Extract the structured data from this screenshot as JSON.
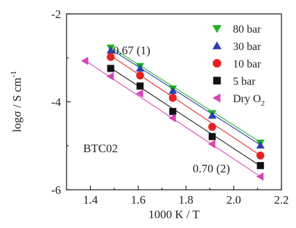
{
  "chart_data": {
    "type": "scatter",
    "xlabel": "1000 K / T",
    "ylabel_main": "logσ / S cm",
    "ylabel_sup": "-1",
    "xlim": [
      1.3,
      2.2
    ],
    "ylim": [
      -6,
      -2
    ],
    "xticks": [
      1.4,
      1.6,
      1.8,
      2.0,
      2.2
    ],
    "yticks": [
      -6,
      -4,
      -2
    ],
    "xtick_labels": [
      "1.4",
      "1.6",
      "1.8",
      "2.0",
      "2.2"
    ],
    "ytick_labels": [
      "-6",
      "-4",
      "-2"
    ],
    "grid": false,
    "legend_position": "top-right",
    "annotations": {
      "sample": "BTC02",
      "slope_top": "0.67 (1)",
      "slope_bottom": "0.70 (2)"
    },
    "series": [
      {
        "name": "80 bar",
        "marker": "triangle-down",
        "color": "#1db31d",
        "x": [
          1.485,
          1.608,
          1.745,
          1.91,
          2.112
        ],
        "y": [
          -2.77,
          -3.19,
          -3.7,
          -4.26,
          -4.93
        ],
        "fit": {
          "x": [
            1.485,
            2.112
          ],
          "y": [
            -2.75,
            -4.92
          ]
        }
      },
      {
        "name": "30 bar",
        "marker": "triangle-up",
        "color": "#2b3fb0",
        "x": [
          1.485,
          1.608,
          1.745,
          1.91,
          2.112
        ],
        "y": [
          -2.83,
          -3.24,
          -3.75,
          -4.31,
          -4.99
        ],
        "fit": {
          "x": [
            1.485,
            2.112
          ],
          "y": [
            -2.8,
            -4.98
          ]
        }
      },
      {
        "name": "10 bar",
        "marker": "circle",
        "color": "#e42222",
        "x": [
          1.485,
          1.608,
          1.745,
          1.91,
          2.112
        ],
        "y": [
          -2.98,
          -3.4,
          -3.91,
          -4.57,
          -5.22
        ],
        "fit": {
          "x": [
            1.485,
            2.112
          ],
          "y": [
            -2.95,
            -5.22
          ]
        }
      },
      {
        "name": "5 bar",
        "marker": "square",
        "color": "#111111",
        "x": [
          1.485,
          1.608,
          1.745,
          1.91,
          2.112
        ],
        "y": [
          -3.24,
          -3.64,
          -4.22,
          -4.79,
          -5.45
        ],
        "fit": {
          "x": [
            1.485,
            2.112
          ],
          "y": [
            -3.23,
            -5.46
          ]
        }
      },
      {
        "name": "Dry O",
        "name_sub": "2",
        "marker": "triangle-left",
        "color": "#d646b5",
        "x": [
          1.378,
          1.485,
          1.608,
          1.745,
          1.91,
          2.112
        ],
        "y": [
          -3.07,
          -3.42,
          -3.81,
          -4.37,
          -4.96,
          -5.7
        ],
        "fit": {
          "x": [
            1.378,
            2.112
          ],
          "y": [
            -3.06,
            -5.7
          ]
        }
      }
    ]
  }
}
